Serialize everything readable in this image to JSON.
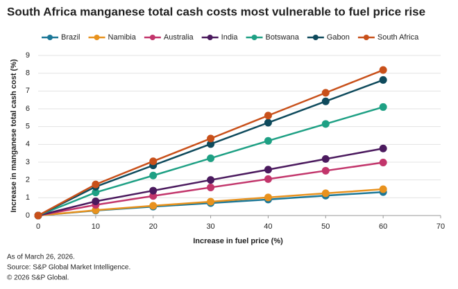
{
  "chart_data": {
    "type": "line",
    "title": "South Africa manganese total cash costs most vulnerable to fuel price rise",
    "x_label": "Increase in fuel price (%)",
    "y_label": "Increase in manganese total cash cost (%)",
    "x": [
      0,
      10,
      20,
      30,
      40,
      50,
      60
    ],
    "xlim": [
      0,
      70
    ],
    "xticks": [
      0,
      10,
      20,
      30,
      40,
      50,
      60,
      70
    ],
    "ylim": [
      0,
      9
    ],
    "yticks": [
      0,
      1,
      2,
      3,
      4,
      5,
      6,
      7,
      8,
      9
    ],
    "grid": true,
    "legend": "top",
    "series": [
      {
        "name": "Brazil",
        "color": "#1b7797",
        "values": [
          0,
          0.28,
          0.5,
          0.7,
          0.9,
          1.12,
          1.32
        ]
      },
      {
        "name": "Namibia",
        "color": "#e8921e",
        "values": [
          0,
          0.3,
          0.55,
          0.78,
          1.02,
          1.25,
          1.48
        ]
      },
      {
        "name": "Australia",
        "color": "#c2356b",
        "values": [
          0,
          0.6,
          1.1,
          1.58,
          2.05,
          2.52,
          2.98
        ]
      },
      {
        "name": "India",
        "color": "#4b1a5e",
        "values": [
          0,
          0.8,
          1.4,
          2.0,
          2.58,
          3.18,
          3.77
        ]
      },
      {
        "name": "Botswana",
        "color": "#1ea084",
        "values": [
          0,
          1.3,
          2.25,
          3.22,
          4.2,
          5.15,
          6.1
        ]
      },
      {
        "name": "Gabon",
        "color": "#0e4a5c",
        "values": [
          0,
          1.62,
          2.82,
          4.02,
          5.22,
          6.42,
          7.62
        ]
      },
      {
        "name": "South Africa",
        "color": "#c8501a",
        "values": [
          0,
          1.75,
          3.05,
          4.33,
          5.62,
          6.9,
          8.18
        ]
      }
    ],
    "notes": [
      "As of March 26, 2026.",
      "Source: S&P Global Market Intelligence.",
      "© 2026 S&P Global."
    ]
  }
}
